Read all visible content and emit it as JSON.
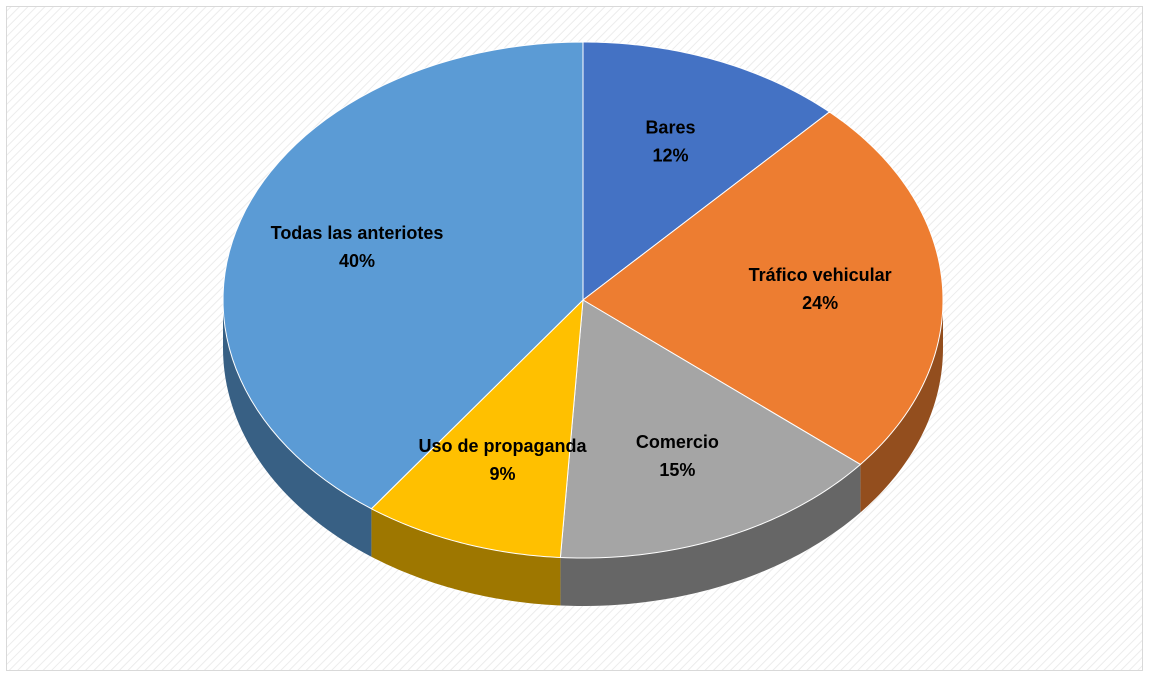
{
  "chart_data": {
    "type": "pie",
    "categories": [
      "Bares",
      "Tráfico vehicular",
      "Comercio",
      "Uso de propaganda",
      "Todas las anteriotes"
    ],
    "values": [
      12,
      24,
      15,
      9,
      40
    ],
    "value_labels": [
      "12%",
      "24%",
      "15%",
      "9%",
      "40%"
    ],
    "colors": [
      "#4472c4",
      "#ed7d31",
      "#a5a5a5",
      "#ffc000",
      "#5b9bd5"
    ]
  }
}
